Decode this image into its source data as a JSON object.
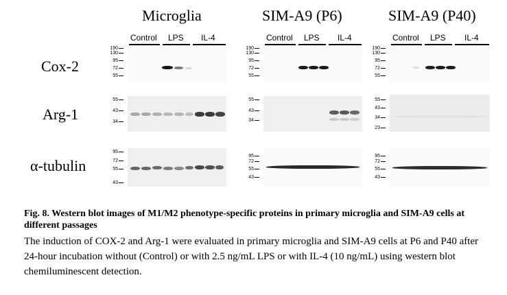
{
  "panels": [
    {
      "title": "Microglia"
    },
    {
      "title": "SIM-A9 (P6)"
    },
    {
      "title": "SIM-A9 (P40)"
    }
  ],
  "conditions": [
    "Control",
    "LPS",
    "IL-4"
  ],
  "proteins": [
    {
      "label": "Cox-2",
      "markers": [
        "190",
        "130",
        "95",
        "72",
        "55"
      ]
    },
    {
      "label": "Arg-1",
      "markers_by_panel": [
        [
          "55",
          "43",
          "34"
        ],
        [
          "55",
          "43",
          "34"
        ],
        [
          "55",
          "43",
          "34",
          "23"
        ]
      ]
    },
    {
      "label": "α-tubulin",
      "markers_by_panel": [
        [
          "95",
          "72",
          "55",
          "43"
        ],
        [
          "95",
          "72",
          "55",
          "43"
        ],
        [
          "95",
          "72",
          "55",
          "43"
        ]
      ]
    }
  ],
  "caption": {
    "heading": "Fig. 8. Western blot images of M1/M2 phenotype-specific proteins in primary microglia and SIM-A9 cells at different passages",
    "body": "The induction of COX-2 and Arg-1 were evaluated in primary microglia and SIM-A9 cells at P6 and P40 after 24-hour incubation without (Control) or with 2.5 ng/mL LPS or with IL-4 (10 ng/mL) using western blot chemiluminescent detection."
  }
}
